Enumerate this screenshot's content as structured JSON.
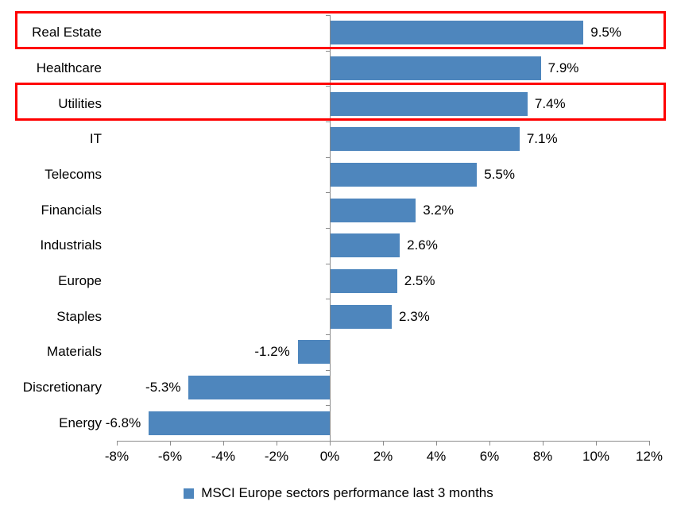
{
  "chart_data": {
    "type": "bar",
    "orientation": "horizontal",
    "categories": [
      "Real Estate",
      "Healthcare",
      "Utilities",
      "IT",
      "Telecoms",
      "Financials",
      "Industrials",
      "Europe",
      "Staples",
      "Materials",
      "Discretionary",
      "Energy"
    ],
    "series": [
      {
        "name": "MSCI Europe sectors performance last 3 months",
        "values": [
          9.5,
          7.9,
          7.4,
          7.1,
          5.5,
          3.2,
          2.6,
          2.5,
          2.3,
          -1.2,
          -5.3,
          -6.8
        ]
      }
    ],
    "value_labels": [
      "9.5%",
      "7.9%",
      "7.4%",
      "7.1%",
      "5.5%",
      "3.2%",
      "2.6%",
      "2.5%",
      "2.3%",
      "-1.2%",
      "-5.3%",
      "-6.8%"
    ],
    "x_tick_labels": [
      "-8%",
      "-6%",
      "-4%",
      "-2%",
      "0%",
      "2%",
      "4%",
      "6%",
      "8%",
      "10%",
      "12%"
    ],
    "x_tick_values": [
      -8,
      -6,
      -4,
      -2,
      0,
      2,
      4,
      6,
      8,
      10,
      12
    ],
    "xlim": [
      -8,
      12
    ],
    "grid": false,
    "highlighted_categories": [
      "Real Estate",
      "Utilities"
    ],
    "legend": {
      "label": "MSCI Europe sectors performance last 3 months",
      "position": "bottom"
    },
    "colors": {
      "bar": "#4E86BD",
      "axis": "#8C8C8C",
      "text": "#000000",
      "highlight": "#FF0000",
      "background": "#FFFFFF"
    }
  }
}
